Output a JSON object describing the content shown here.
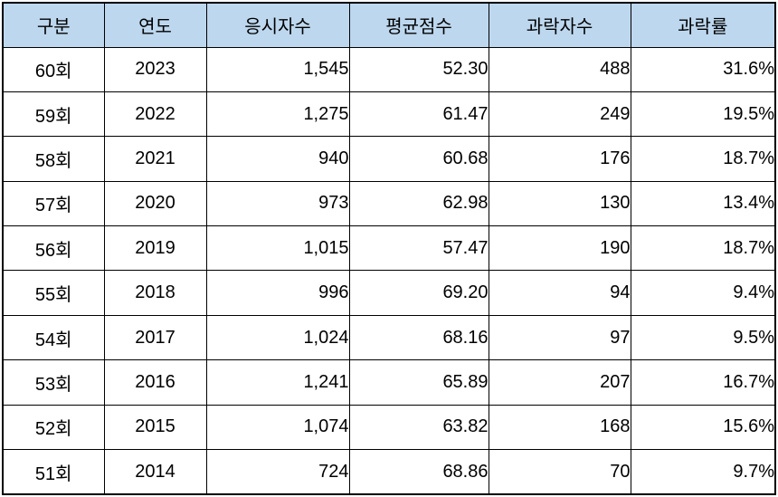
{
  "colors": {
    "header_bg": "#BDD7EE",
    "border": "#000000",
    "text": "#000000",
    "row_bg": "#FFFFFF"
  },
  "chart_data": {
    "type": "table",
    "title": "",
    "columns": [
      "구분",
      "연도",
      "응시자수",
      "평균점수",
      "과락자수",
      "과락률"
    ],
    "column_keys": [
      "round",
      "year",
      "applicants",
      "average_score",
      "fail_count",
      "fail_rate"
    ],
    "column_align": [
      "center",
      "center",
      "right",
      "right",
      "right",
      "right"
    ],
    "rows": [
      [
        "60회",
        "2023",
        "1,545",
        "52.30",
        "488",
        "31.6%"
      ],
      [
        "59회",
        "2022",
        "1,275",
        "61.47",
        "249",
        "19.5%"
      ],
      [
        "58회",
        "2021",
        "940",
        "60.68",
        "176",
        "18.7%"
      ],
      [
        "57회",
        "2020",
        "973",
        "62.98",
        "130",
        "13.4%"
      ],
      [
        "56회",
        "2019",
        "1,015",
        "57.47",
        "190",
        "18.7%"
      ],
      [
        "55회",
        "2018",
        "996",
        "69.20",
        "94",
        "9.4%"
      ],
      [
        "54회",
        "2017",
        "1,024",
        "68.16",
        "97",
        "9.5%"
      ],
      [
        "53회",
        "2016",
        "1,241",
        "65.89",
        "207",
        "16.7%"
      ],
      [
        "52회",
        "2015",
        "1,074",
        "63.82",
        "168",
        "15.6%"
      ],
      [
        "51회",
        "2014",
        "724",
        "68.86",
        "70",
        "9.7%"
      ]
    ]
  }
}
